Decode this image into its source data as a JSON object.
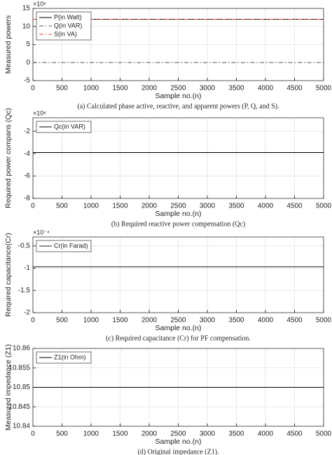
{
  "chart_data": [
    {
      "type": "line",
      "ylabel": "Measured powers",
      "xlabel": "Sample no.(n)",
      "exponent_label": "×10⁶",
      "caption": "(a) Calculated phase active, reactive, and apparent powers (P, Q, and S).",
      "x": [
        0,
        5000
      ],
      "xlim": [
        0,
        5000
      ],
      "xticks": [
        0,
        500,
        1000,
        1500,
        2000,
        2500,
        3000,
        3500,
        4000,
        4500,
        5000
      ],
      "ylim": [
        -5,
        15
      ],
      "yticks": [
        -5,
        0,
        5,
        10,
        15
      ],
      "grid": true,
      "legend": "upper-left",
      "series": [
        {
          "name": "P(in Watt)",
          "color": "#000000",
          "dash": "solid",
          "values": [
            12,
            12
          ]
        },
        {
          "name": "Q(in VAR)",
          "color": "#555555",
          "dash": "dashdot",
          "values": [
            0,
            0
          ]
        },
        {
          "name": "S(in VA)",
          "color": "#e0403a",
          "dash": "dashdot",
          "values": [
            12,
            12
          ]
        }
      ]
    },
    {
      "type": "line",
      "ylabel": "Required power compans (Qc)",
      "xlabel": "Sample no.(n)",
      "exponent_label": "×10⁶",
      "caption": "(b) Required reactive power compensation (Qc)",
      "x": [
        0,
        5000
      ],
      "xlim": [
        0,
        5000
      ],
      "xticks": [
        0,
        500,
        1000,
        1500,
        2000,
        2500,
        3000,
        3500,
        4000,
        4500,
        5000
      ],
      "ylim": [
        -8,
        -0.8
      ],
      "yticks": [
        -8,
        -6,
        -4,
        -2
      ],
      "grid": true,
      "legend": "upper-left",
      "series": [
        {
          "name": "Qc(in VAR)",
          "color": "#000000",
          "dash": "solid",
          "values": [
            -3.9,
            -3.9
          ]
        }
      ]
    },
    {
      "type": "line",
      "ylabel": "Required capacitance(Cr)",
      "xlabel": "Sample no.(n)",
      "exponent_label": "×10⁻⁴",
      "caption": "(c) Required capacitance (Cr) for PF compensation.",
      "x": [
        0,
        5000
      ],
      "xlim": [
        0,
        5000
      ],
      "xticks": [
        0,
        500,
        1000,
        1500,
        2000,
        2500,
        3000,
        3500,
        4000,
        4500,
        5000
      ],
      "ylim": [
        -2,
        -0.3
      ],
      "yticks": [
        -2,
        -1.5,
        -1,
        -0.5
      ],
      "grid": true,
      "legend": "upper-left",
      "series": [
        {
          "name": "Cr(in Farad)",
          "color": "#222222",
          "dash": "solid",
          "values": [
            -0.97,
            -0.97
          ]
        }
      ]
    },
    {
      "type": "line",
      "ylabel": "Measured impedance (Z1)",
      "xlabel": "Sample no.(n)",
      "caption": "(d) Original impedance (Z1).",
      "x": [
        0,
        5000
      ],
      "xlim": [
        0,
        5000
      ],
      "xticks": [
        0,
        500,
        1000,
        1500,
        2000,
        2500,
        3000,
        3500,
        4000,
        4500,
        5000
      ],
      "ylim": [
        10.84,
        10.86
      ],
      "yticks": [
        10.84,
        10.845,
        10.85,
        10.855,
        10.86
      ],
      "grid": true,
      "legend": "upper-left",
      "series": [
        {
          "name": "Z1(in Ohm)",
          "color": "#000000",
          "dash": "solid",
          "values": [
            10.85,
            10.85
          ]
        }
      ]
    }
  ]
}
